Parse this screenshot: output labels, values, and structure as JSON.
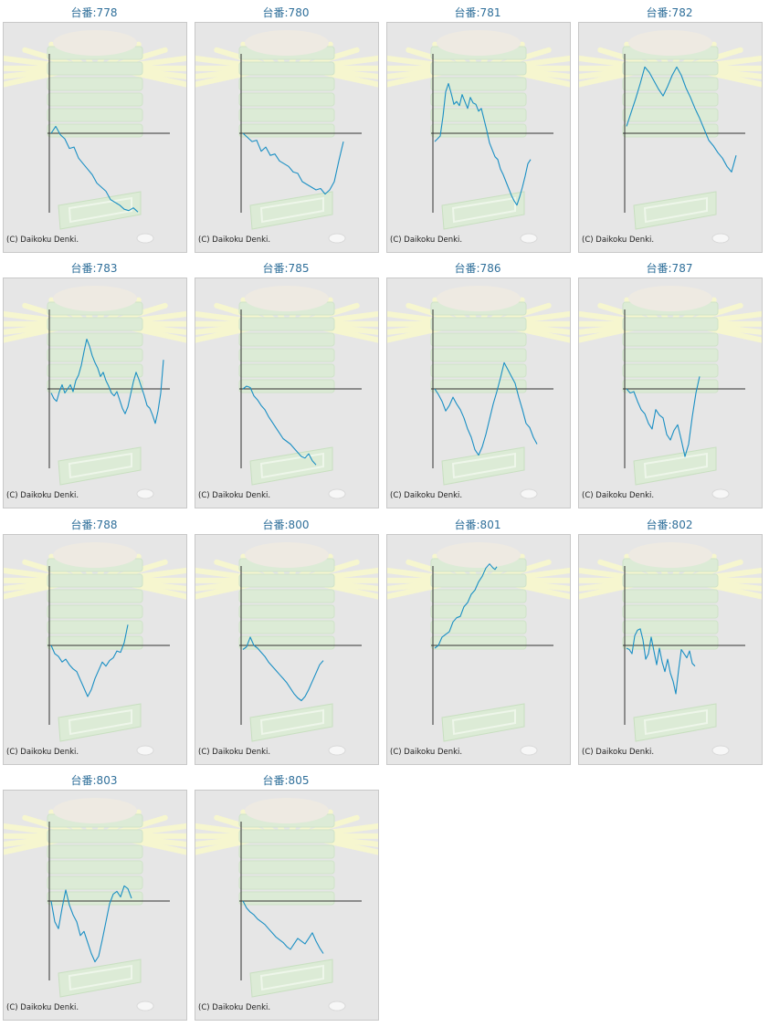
{
  "copyright": "(C) Daikoku Denki.",
  "colors": {
    "title": "#2f6f9a",
    "line": "#1a8fc4",
    "axis": "#333333",
    "panel_bg": "#e6e6e6"
  },
  "chart_data": [
    {
      "type": "line",
      "title": "台番:778",
      "ylim": [
        -115,
        115
      ],
      "x": [
        0,
        5,
        10,
        15,
        20,
        25,
        30,
        35,
        40,
        45,
        50,
        55,
        60,
        65,
        70,
        75,
        80,
        85,
        90,
        95
      ],
      "y": [
        0,
        10,
        -2,
        -8,
        -22,
        -20,
        -36,
        -44,
        -52,
        -60,
        -72,
        -78,
        -84,
        -96,
        -100,
        -104,
        -110,
        -112,
        -108,
        -114
      ]
    },
    {
      "type": "line",
      "title": "台番:780",
      "ylim": [
        -115,
        115
      ],
      "x": [
        0,
        5,
        10,
        15,
        20,
        25,
        30,
        35,
        40,
        45,
        50,
        55,
        60,
        65,
        70,
        75,
        80,
        85,
        90,
        95,
        100,
        105,
        110
      ],
      "y": [
        0,
        -6,
        -12,
        -10,
        -26,
        -20,
        -32,
        -30,
        -40,
        -44,
        -48,
        -56,
        -58,
        -70,
        -74,
        -78,
        -82,
        -80,
        -88,
        -82,
        -70,
        -40,
        -12
      ]
    },
    {
      "type": "line",
      "title": "台番:781",
      "ylim": [
        -115,
        115
      ],
      "x": [
        0,
        3,
        6,
        9,
        12,
        15,
        18,
        21,
        24,
        27,
        30,
        33,
        36,
        39,
        42,
        45,
        48,
        51,
        54,
        57,
        60,
        63,
        66,
        69,
        72,
        75,
        78,
        81,
        84,
        87,
        90,
        93,
        96,
        99,
        102,
        105
      ],
      "y": [
        -12,
        -8,
        -4,
        24,
        60,
        72,
        58,
        42,
        46,
        40,
        56,
        46,
        36,
        52,
        44,
        42,
        32,
        36,
        20,
        4,
        -14,
        -24,
        -34,
        -38,
        -52,
        -60,
        -70,
        -80,
        -90,
        -98,
        -104,
        -92,
        -78,
        -62,
        -44,
        -38
      ]
    },
    {
      "type": "line",
      "title": "台番:782",
      "ylim": [
        -115,
        115
      ],
      "x": [
        0,
        5,
        10,
        15,
        20,
        25,
        30,
        35,
        40,
        45,
        50,
        55,
        60,
        65,
        70,
        75,
        80,
        85,
        90,
        95,
        100,
        105,
        110,
        115,
        120
      ],
      "y": [
        10,
        30,
        50,
        72,
        96,
        88,
        76,
        64,
        54,
        68,
        84,
        96,
        84,
        66,
        52,
        36,
        22,
        6,
        -10,
        -18,
        -28,
        -36,
        -48,
        -56,
        -32
      ]
    },
    {
      "type": "line",
      "title": "台番:783",
      "ylim": [
        -115,
        115
      ],
      "x": [
        0,
        3,
        6,
        9,
        12,
        15,
        18,
        21,
        24,
        27,
        30,
        33,
        36,
        39,
        42,
        45,
        48,
        51,
        54,
        57,
        60,
        63,
        66,
        69,
        72,
        75,
        78,
        81,
        84,
        87,
        90,
        93,
        96,
        99,
        102,
        105,
        108,
        111,
        114,
        117,
        120,
        123
      ],
      "y": [
        -6,
        -14,
        -18,
        -4,
        6,
        -6,
        0,
        6,
        -4,
        12,
        20,
        34,
        54,
        72,
        62,
        48,
        38,
        30,
        18,
        24,
        12,
        4,
        -6,
        -10,
        -4,
        -16,
        -28,
        -36,
        -26,
        -8,
        10,
        24,
        14,
        2,
        -10,
        -24,
        -28,
        -38,
        -50,
        -32,
        -6,
        42
      ]
    },
    {
      "type": "line",
      "title": "台番:785",
      "ylim": [
        -115,
        115
      ],
      "x": [
        0,
        4,
        8,
        12,
        16,
        20,
        24,
        28,
        32,
        36,
        40,
        44,
        48,
        52,
        56,
        60,
        64,
        68,
        72,
        76,
        80
      ],
      "y": [
        0,
        4,
        2,
        -10,
        -16,
        -24,
        -30,
        -40,
        -48,
        -56,
        -64,
        -72,
        -76,
        -80,
        -86,
        -92,
        -98,
        -100,
        -94,
        -104,
        -110
      ]
    },
    {
      "type": "line",
      "title": "台番:786",
      "ylim": [
        -115,
        115
      ],
      "x": [
        0,
        4,
        8,
        12,
        16,
        20,
        24,
        28,
        32,
        36,
        40,
        44,
        48,
        52,
        56,
        60,
        64,
        68,
        72,
        76,
        80,
        84,
        88,
        92,
        96,
        100,
        104,
        108,
        112
      ],
      "y": [
        0,
        -8,
        -18,
        -32,
        -24,
        -12,
        -22,
        -30,
        -42,
        -58,
        -70,
        -88,
        -96,
        -84,
        -66,
        -44,
        -22,
        -4,
        16,
        38,
        28,
        18,
        8,
        -12,
        -30,
        -50,
        -56,
        -70,
        -80
      ]
    },
    {
      "type": "line",
      "title": "台番:787",
      "ylim": [
        -115,
        115
      ],
      "x": [
        0,
        4,
        8,
        12,
        16,
        20,
        24,
        28,
        32,
        36,
        40,
        44,
        48,
        52,
        56,
        60,
        64,
        68,
        72,
        76,
        80
      ],
      "y": [
        0,
        -6,
        -4,
        -18,
        -30,
        -36,
        -50,
        -58,
        -30,
        -38,
        -42,
        -66,
        -74,
        -60,
        -52,
        -74,
        -98,
        -80,
        -40,
        -6,
        18
      ]
    },
    {
      "type": "line",
      "title": "台番:788",
      "ylim": [
        -115,
        115
      ],
      "x": [
        0,
        4,
        8,
        12,
        16,
        20,
        24,
        28,
        32,
        36,
        40,
        44,
        48,
        52,
        56,
        60,
        64,
        68,
        72,
        76,
        80,
        84
      ],
      "y": [
        0,
        -12,
        -16,
        -24,
        -20,
        -28,
        -34,
        -38,
        -50,
        -62,
        -74,
        -64,
        -48,
        -36,
        -24,
        -30,
        -22,
        -18,
        -8,
        -10,
        4,
        30
      ]
    },
    {
      "type": "line",
      "title": "台番:800",
      "ylim": [
        -115,
        115
      ],
      "x": [
        0,
        4,
        8,
        12,
        16,
        20,
        24,
        28,
        32,
        36,
        40,
        44,
        48,
        52,
        56,
        60,
        64,
        68,
        72,
        76,
        80,
        84,
        88
      ],
      "y": [
        -6,
        -2,
        12,
        0,
        -4,
        -10,
        -16,
        -24,
        -30,
        -36,
        -42,
        -48,
        -54,
        -62,
        -70,
        -76,
        -80,
        -74,
        -64,
        -52,
        -40,
        -28,
        -22
      ]
    },
    {
      "type": "line",
      "title": "台番:801",
      "ylim": [
        -115,
        115
      ],
      "x": [
        0,
        4,
        8,
        12,
        16,
        20,
        24,
        28,
        32,
        36,
        40,
        44,
        48,
        52,
        56,
        60,
        64,
        66,
        68
      ],
      "y": [
        -4,
        0,
        12,
        16,
        20,
        34,
        40,
        42,
        56,
        62,
        74,
        80,
        92,
        100,
        112,
        118,
        112,
        110,
        114
      ]
    },
    {
      "type": "line",
      "title": "台番:802",
      "ylim": [
        -115,
        115
      ],
      "x": [
        0,
        3,
        6,
        9,
        12,
        15,
        18,
        21,
        24,
        27,
        30,
        33,
        36,
        39,
        42,
        45,
        48,
        51,
        54,
        57,
        60,
        63,
        66,
        69,
        72,
        75
      ],
      "y": [
        -4,
        -6,
        -12,
        14,
        22,
        24,
        8,
        -20,
        -12,
        12,
        -8,
        -28,
        -4,
        -24,
        -38,
        -20,
        -40,
        -52,
        -70,
        -36,
        -6,
        -12,
        -18,
        -8,
        -26,
        -30
      ]
    },
    {
      "type": "line",
      "title": "台番:803",
      "ylim": [
        -115,
        115
      ],
      "x": [
        0,
        4,
        8,
        12,
        16,
        20,
        24,
        28,
        32,
        36,
        40,
        44,
        48,
        52,
        56,
        60,
        64,
        68,
        72,
        76,
        80,
        84,
        88
      ],
      "y": [
        0,
        -30,
        -40,
        -10,
        16,
        -6,
        -20,
        -30,
        -50,
        -44,
        -60,
        -76,
        -88,
        -80,
        -56,
        -30,
        -4,
        10,
        14,
        6,
        22,
        18,
        4
      ]
    },
    {
      "type": "line",
      "title": "台番:805",
      "ylim": [
        -115,
        115
      ],
      "x": [
        0,
        4,
        8,
        12,
        16,
        20,
        24,
        28,
        32,
        36,
        40,
        44,
        48,
        52,
        56,
        60,
        64,
        68,
        72,
        76,
        80,
        84,
        88
      ],
      "y": [
        0,
        -10,
        -16,
        -20,
        -26,
        -30,
        -34,
        -40,
        -46,
        -52,
        -56,
        -60,
        -66,
        -70,
        -62,
        -54,
        -58,
        -62,
        -54,
        -46,
        -58,
        -68,
        -76
      ]
    }
  ]
}
